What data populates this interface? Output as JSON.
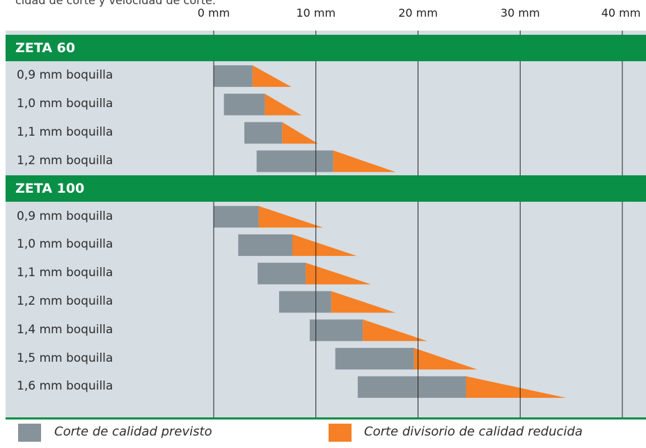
{
  "header_caption": "cidad de corte y velocidad de corte.",
  "colors": {
    "group_header": "#0a8f47",
    "panel_background": "#d6dde3",
    "quality_cut": "#86939b",
    "reduced_quality_cut": "#f58025",
    "gridline": "#222222"
  },
  "legend": {
    "quality_label": "Corte de calidad previsto",
    "reduced_label": "Corte divisorio de calidad reducida"
  },
  "chart_data": {
    "type": "bar",
    "orientation": "horizontal",
    "x_unit": "mm",
    "xlim": [
      0,
      40
    ],
    "x_ticks": [
      0,
      10,
      20,
      30,
      40
    ],
    "x_tick_labels": [
      "0 mm",
      "10 mm",
      "20 mm",
      "30 mm",
      "40 mm"
    ],
    "grid": "vertical lines at ticks",
    "legend_position": "bottom",
    "series": [
      {
        "name": "Corte de calidad previsto",
        "shape": "rectangle"
      },
      {
        "name": "Corte divisorio de calidad reducida",
        "shape": "triangle"
      }
    ],
    "groups": [
      {
        "name": "ZETA 60",
        "rows": [
          {
            "label": "0,9 mm boquilla",
            "quality_start": 0.0,
            "quality_end": 3.8,
            "reduced_end": 7.6
          },
          {
            "label": "1,0 mm boquilla",
            "quality_start": 1.0,
            "quality_end": 5.0,
            "reduced_end": 8.6
          },
          {
            "label": "1,1 mm boquilla",
            "quality_start": 3.0,
            "quality_end": 6.7,
            "reduced_end": 10.2
          },
          {
            "label": "1,2 mm boquilla",
            "quality_start": 4.2,
            "quality_end": 11.7,
            "reduced_end": 17.8
          }
        ]
      },
      {
        "name": "ZETA 100",
        "rows": [
          {
            "label": "0,9 mm boquilla",
            "quality_start": 0.0,
            "quality_end": 4.4,
            "reduced_end": 10.7
          },
          {
            "label": "1,0 mm boquilla",
            "quality_start": 2.4,
            "quality_end": 7.7,
            "reduced_end": 14.0
          },
          {
            "label": "1,1 mm boquilla",
            "quality_start": 4.3,
            "quality_end": 9.0,
            "reduced_end": 15.4
          },
          {
            "label": "1,2 mm boquilla",
            "quality_start": 6.4,
            "quality_end": 11.5,
            "reduced_end": 17.8
          },
          {
            "label": "1,4 mm boquilla",
            "quality_start": 9.4,
            "quality_end": 14.6,
            "reduced_end": 20.9
          },
          {
            "label": "1,5 mm boquilla",
            "quality_start": 11.9,
            "quality_end": 19.6,
            "reduced_end": 25.8
          },
          {
            "label": "1,6 mm boquilla",
            "quality_start": 14.1,
            "quality_end": 24.7,
            "reduced_end": 34.5
          }
        ]
      }
    ]
  }
}
